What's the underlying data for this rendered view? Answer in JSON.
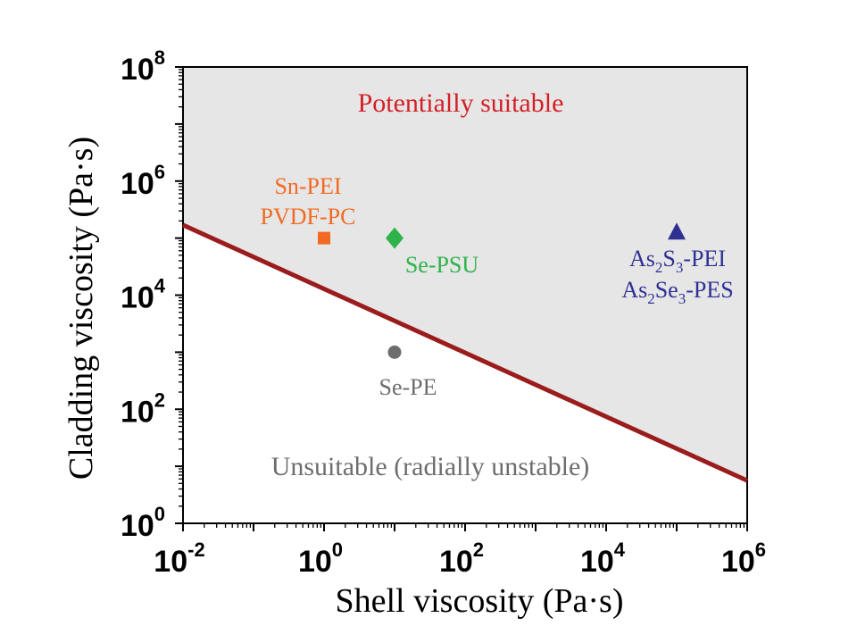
{
  "chart_data": {
    "type": "scatter",
    "title": "",
    "xlabel": "Shell viscosity (Pa·s)",
    "ylabel": "Cladding viscosity (Pa·s)",
    "xscale": "log",
    "yscale": "log",
    "xlim_exp": [
      -2,
      6
    ],
    "ylim_exp": [
      0,
      8
    ],
    "xticks": [
      {
        "base": "10",
        "exp": "-2",
        "value_exp": -2
      },
      {
        "base": "10",
        "exp": "0",
        "value_exp": 0
      },
      {
        "base": "10",
        "exp": "2",
        "value_exp": 2
      },
      {
        "base": "10",
        "exp": "4",
        "value_exp": 4
      },
      {
        "base": "10",
        "exp": "6",
        "value_exp": 6
      }
    ],
    "yticks": [
      {
        "base": "10",
        "exp": "0",
        "value_exp": 0
      },
      {
        "base": "10",
        "exp": "2",
        "value_exp": 2
      },
      {
        "base": "10",
        "exp": "4",
        "value_exp": 4
      },
      {
        "base": "10",
        "exp": "6",
        "value_exp": 6
      },
      {
        "base": "10",
        "exp": "8",
        "value_exp": 8
      }
    ],
    "boundary": {
      "color": "#9b1c1c",
      "x_exp": [
        -2,
        6
      ],
      "y_exp": [
        5.23,
        0.75
      ]
    },
    "regions": {
      "above": {
        "label": "Potentially suitable",
        "color": "#d41f26",
        "fill": "#e6e6e6"
      },
      "below": {
        "label": "Unsuitable (radially unstable)",
        "color": "#6d6d6d"
      }
    },
    "points": [
      {
        "name": "Sn-PEI / PVDF-PC",
        "x_exp": 0,
        "y_exp": 5,
        "marker": "square",
        "color": "#f26a21",
        "label_lines": [
          {
            "text": "Sn-PEI"
          },
          {
            "text": "PVDF-PC"
          }
        ]
      },
      {
        "name": "Se-PSU",
        "x_exp": 1,
        "y_exp": 5,
        "marker": "diamond",
        "color": "#2db34a",
        "label_lines": [
          {
            "text": "Se-PSU"
          }
        ]
      },
      {
        "name": "Se-PE",
        "x_exp": 1,
        "y_exp": 3,
        "marker": "circle",
        "color": "#6d6d6d",
        "label_lines": [
          {
            "text": "Se-PE"
          }
        ]
      },
      {
        "name": "As2S3-PEI / As2Se3-PES",
        "x_exp": 5,
        "y_exp": 5.1,
        "marker": "triangle",
        "color": "#2e3192",
        "label_lines": [
          {
            "parts": [
              "As",
              "2",
              "S",
              "3",
              "-PEI"
            ]
          },
          {
            "parts": [
              "As",
              "2",
              "Se",
              "3",
              "-PES"
            ]
          }
        ]
      }
    ]
  }
}
